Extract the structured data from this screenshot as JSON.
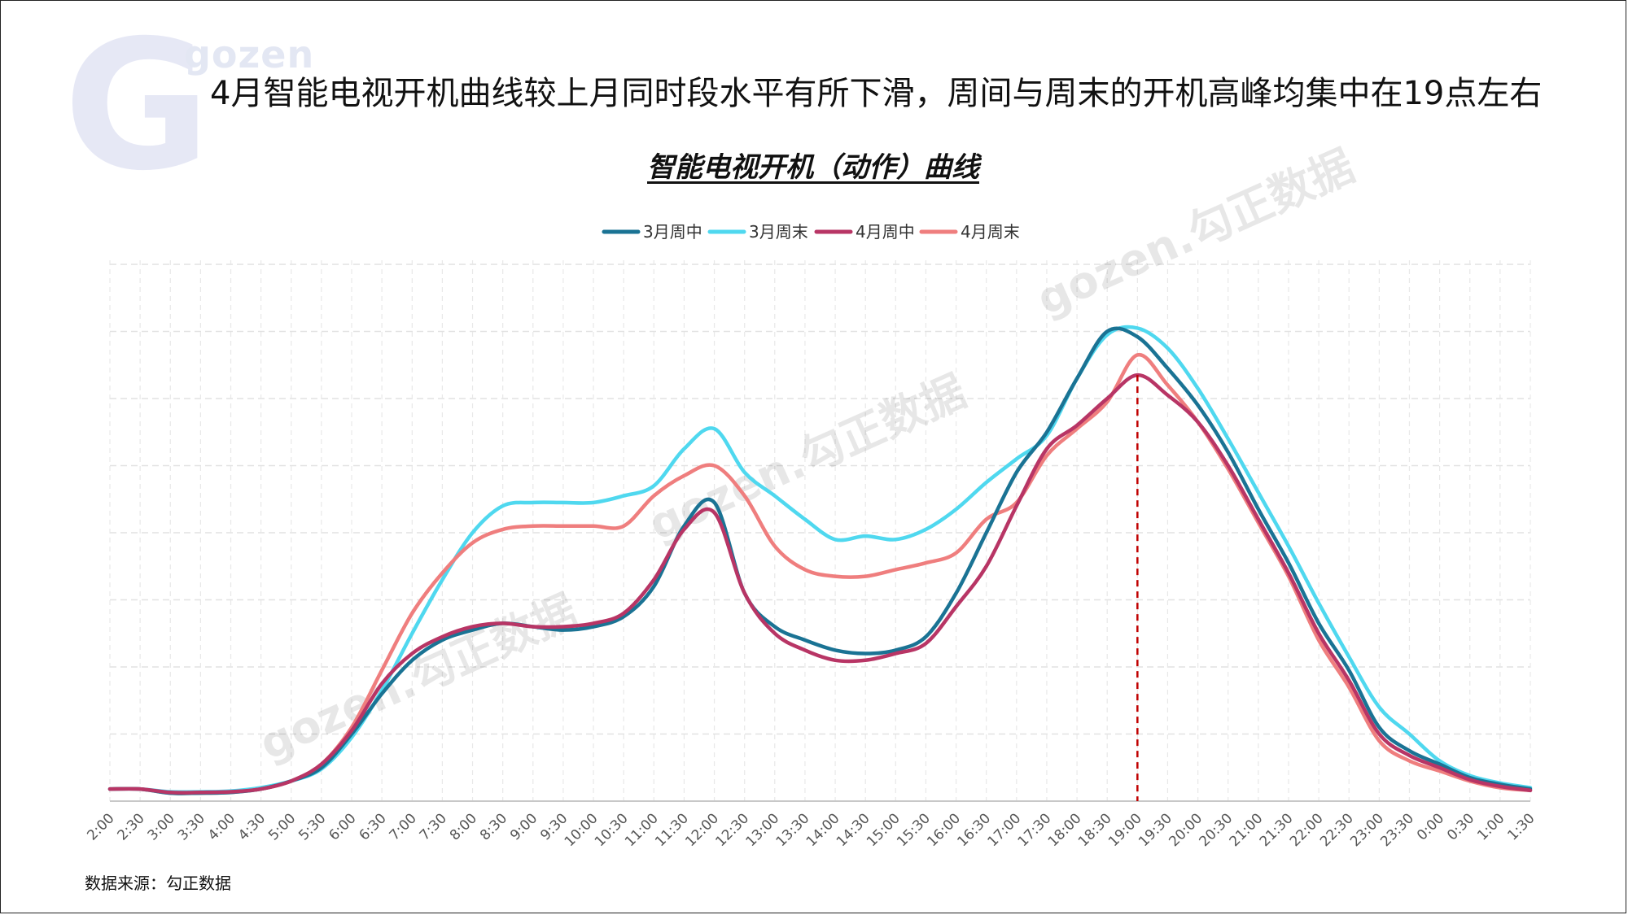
{
  "page": {
    "title": "4月智能电视开机曲线较上月同时段水平有所下滑，周间与周末的开机高峰均集中在19点左右",
    "source": "数据来源：勾正数据",
    "logo_letter": "G",
    "logo_text": "gozen",
    "watermark_text": "gozen.勾正数据"
  },
  "colors": {
    "mar_weekday": "#1a7394",
    "mar_weekend": "#4fd8ef",
    "apr_weekday": "#b83565",
    "apr_weekend": "#ef7e7e",
    "peak_line": "#c00000"
  },
  "chart_data": {
    "type": "line",
    "title": "智能电视开机（动作）曲线",
    "xlabel": "",
    "ylabel": "",
    "ylim": [
      0,
      8
    ],
    "grid": true,
    "y_tick_labels_shown": false,
    "legend_position": "top-center",
    "peak_marker_x": "19:00",
    "x": [
      "2:00",
      "2:30",
      "3:00",
      "3:30",
      "4:00",
      "4:30",
      "5:00",
      "5:30",
      "6:00",
      "6:30",
      "7:00",
      "7:30",
      "8:00",
      "8:30",
      "9:00",
      "9:30",
      "10:00",
      "10:30",
      "11:00",
      "11:30",
      "12:00",
      "12:30",
      "13:00",
      "13:30",
      "14:00",
      "14:30",
      "15:00",
      "15:30",
      "16:00",
      "16:30",
      "17:00",
      "17:30",
      "18:00",
      "18:30",
      "19:00",
      "19:30",
      "20:00",
      "20:30",
      "21:00",
      "21:30",
      "22:00",
      "22:30",
      "23:00",
      "23:30",
      "0:00",
      "0:30",
      "1:00",
      "1:30"
    ],
    "series": [
      {
        "name": "3月周中",
        "color_key": "mar_weekday",
        "values": [
          0.18,
          0.18,
          0.12,
          0.12,
          0.13,
          0.18,
          0.3,
          0.5,
          1.0,
          1.6,
          2.1,
          2.4,
          2.55,
          2.65,
          2.6,
          2.55,
          2.6,
          2.75,
          3.2,
          4.1,
          4.45,
          3.1,
          2.6,
          2.4,
          2.25,
          2.2,
          2.25,
          2.45,
          3.1,
          4.0,
          4.9,
          5.5,
          6.3,
          7.0,
          6.92,
          6.45,
          5.9,
          5.2,
          4.35,
          3.55,
          2.65,
          1.95,
          1.1,
          0.75,
          0.55,
          0.35,
          0.25,
          0.18
        ]
      },
      {
        "name": "3月周末",
        "color_key": "mar_weekend",
        "values": [
          0.18,
          0.18,
          0.14,
          0.14,
          0.15,
          0.2,
          0.3,
          0.48,
          0.95,
          1.65,
          2.5,
          3.3,
          4.0,
          4.4,
          4.45,
          4.45,
          4.45,
          4.55,
          4.7,
          5.25,
          5.55,
          4.9,
          4.55,
          4.2,
          3.9,
          3.95,
          3.9,
          4.05,
          4.35,
          4.75,
          5.1,
          5.45,
          6.3,
          6.95,
          7.05,
          6.75,
          6.15,
          5.4,
          4.6,
          3.8,
          2.95,
          2.15,
          1.4,
          1.0,
          0.6,
          0.38,
          0.27,
          0.2
        ]
      },
      {
        "name": "4月周中",
        "color_key": "apr_weekday",
        "values": [
          0.18,
          0.18,
          0.13,
          0.13,
          0.14,
          0.18,
          0.3,
          0.55,
          1.05,
          1.75,
          2.2,
          2.45,
          2.6,
          2.65,
          2.6,
          2.6,
          2.65,
          2.8,
          3.3,
          4.05,
          4.3,
          3.1,
          2.5,
          2.25,
          2.1,
          2.1,
          2.2,
          2.35,
          2.9,
          3.5,
          4.4,
          5.25,
          5.6,
          6.0,
          6.35,
          6.05,
          5.65,
          5.0,
          4.2,
          3.4,
          2.5,
          1.8,
          1.0,
          0.68,
          0.5,
          0.32,
          0.22,
          0.16
        ]
      },
      {
        "name": "4月周末",
        "color_key": "apr_weekend",
        "values": [
          0.18,
          0.18,
          0.12,
          0.12,
          0.13,
          0.18,
          0.3,
          0.55,
          1.1,
          1.95,
          2.8,
          3.4,
          3.85,
          4.05,
          4.1,
          4.1,
          4.1,
          4.1,
          4.55,
          4.85,
          5.0,
          4.55,
          3.8,
          3.45,
          3.35,
          3.35,
          3.45,
          3.55,
          3.7,
          4.2,
          4.45,
          5.15,
          5.55,
          5.95,
          6.65,
          6.2,
          5.65,
          4.95,
          4.15,
          3.35,
          2.4,
          1.7,
          0.9,
          0.6,
          0.45,
          0.3,
          0.2,
          0.16
        ]
      }
    ]
  }
}
